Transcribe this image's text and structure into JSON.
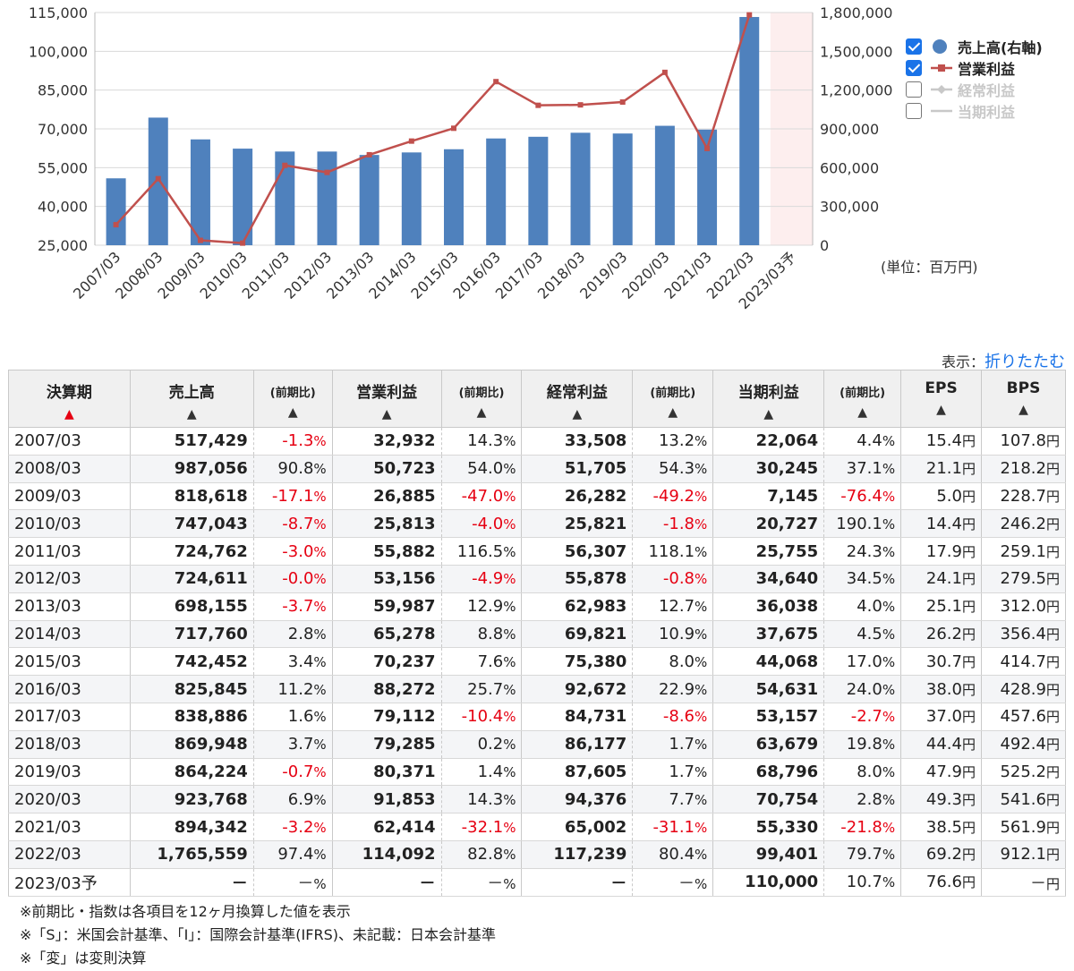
{
  "chart_data": {
    "type": "bar",
    "categories": [
      "2007/03",
      "2008/03",
      "2009/03",
      "2010/03",
      "2011/03",
      "2012/03",
      "2013/03",
      "2014/03",
      "2015/03",
      "2016/03",
      "2017/03",
      "2018/03",
      "2019/03",
      "2020/03",
      "2021/03",
      "2022/03",
      "2023/03予"
    ],
    "series": [
      {
        "name": "売上高(右軸)",
        "type": "bar",
        "axis": "right",
        "color": "#4f81bd",
        "values": [
          517429,
          987056,
          818618,
          747043,
          724762,
          724611,
          698155,
          717760,
          742452,
          825845,
          838886,
          869948,
          864224,
          923768,
          894342,
          1765559,
          null
        ]
      },
      {
        "name": "営業利益",
        "type": "line",
        "axis": "left",
        "color": "#c0504d",
        "values": [
          32932,
          50723,
          26885,
          25813,
          55882,
          53156,
          59987,
          65278,
          70237,
          88272,
          79112,
          79285,
          80371,
          91853,
          62414,
          114092,
          null
        ]
      }
    ],
    "left_axis": {
      "min": 25000,
      "max": 115000,
      "ticks": [
        "115,000",
        "100,000",
        "85,000",
        "70,000",
        "55,000",
        "40,000",
        "25,000"
      ]
    },
    "right_axis": {
      "min": 0,
      "max": 1800000,
      "ticks": [
        "1,800,000",
        "1,500,000",
        "1,200,000",
        "900,000",
        "600,000",
        "300,000",
        "0"
      ]
    },
    "forecast_band_color": "#fdeeee",
    "grid": true,
    "legend_position": "right"
  },
  "legend": [
    {
      "label": "売上高(右軸)",
      "checked": true,
      "symbol": "circle",
      "color": "#4f81bd"
    },
    {
      "label": "営業利益",
      "checked": true,
      "symbol": "line-square",
      "color": "#c0504d"
    },
    {
      "label": "経常利益",
      "checked": false,
      "symbol": "line-diamond",
      "color": "#c8c8c8"
    },
    {
      "label": "当期利益",
      "checked": false,
      "symbol": "line-triangle",
      "color": "#c8c8c8"
    }
  ],
  "unit_label": "(単位：百万円)",
  "display": {
    "prefix": "表示：",
    "toggle_label": "折りたたむ"
  },
  "table": {
    "headers": {
      "period": "決算期",
      "sales": "売上高",
      "change": "(前期比)",
      "op": "営業利益",
      "ordinary": "経常利益",
      "net": "当期利益",
      "eps": "EPS",
      "bps": "BPS"
    },
    "rows": [
      {
        "period": "2007/03",
        "sales": "517,429",
        "sales_chg": "-1.3",
        "op": "32,932",
        "op_chg": "14.3",
        "ord": "33,508",
        "ord_chg": "13.2",
        "net": "22,064",
        "net_chg": "4.4",
        "eps": "15.4",
        "bps": "107.8"
      },
      {
        "period": "2008/03",
        "sales": "987,056",
        "sales_chg": "90.8",
        "op": "50,723",
        "op_chg": "54.0",
        "ord": "51,705",
        "ord_chg": "54.3",
        "net": "30,245",
        "net_chg": "37.1",
        "eps": "21.1",
        "bps": "218.2"
      },
      {
        "period": "2009/03",
        "sales": "818,618",
        "sales_chg": "-17.1",
        "op": "26,885",
        "op_chg": "-47.0",
        "ord": "26,282",
        "ord_chg": "-49.2",
        "net": "7,145",
        "net_chg": "-76.4",
        "eps": "5.0",
        "bps": "228.7"
      },
      {
        "period": "2010/03",
        "sales": "747,043",
        "sales_chg": "-8.7",
        "op": "25,813",
        "op_chg": "-4.0",
        "ord": "25,821",
        "ord_chg": "-1.8",
        "net": "20,727",
        "net_chg": "190.1",
        "eps": "14.4",
        "bps": "246.2"
      },
      {
        "period": "2011/03",
        "sales": "724,762",
        "sales_chg": "-3.0",
        "op": "55,882",
        "op_chg": "116.5",
        "ord": "56,307",
        "ord_chg": "118.1",
        "net": "25,755",
        "net_chg": "24.3",
        "eps": "17.9",
        "bps": "259.1"
      },
      {
        "period": "2012/03",
        "sales": "724,611",
        "sales_chg": "-0.0",
        "op": "53,156",
        "op_chg": "-4.9",
        "ord": "55,878",
        "ord_chg": "-0.8",
        "net": "34,640",
        "net_chg": "34.5",
        "eps": "24.1",
        "bps": "279.5"
      },
      {
        "period": "2013/03",
        "sales": "698,155",
        "sales_chg": "-3.7",
        "op": "59,987",
        "op_chg": "12.9",
        "ord": "62,983",
        "ord_chg": "12.7",
        "net": "36,038",
        "net_chg": "4.0",
        "eps": "25.1",
        "bps": "312.0"
      },
      {
        "period": "2014/03",
        "sales": "717,760",
        "sales_chg": "2.8",
        "op": "65,278",
        "op_chg": "8.8",
        "ord": "69,821",
        "ord_chg": "10.9",
        "net": "37,675",
        "net_chg": "4.5",
        "eps": "26.2",
        "bps": "356.4"
      },
      {
        "period": "2015/03",
        "sales": "742,452",
        "sales_chg": "3.4",
        "op": "70,237",
        "op_chg": "7.6",
        "ord": "75,380",
        "ord_chg": "8.0",
        "net": "44,068",
        "net_chg": "17.0",
        "eps": "30.7",
        "bps": "414.7"
      },
      {
        "period": "2016/03",
        "sales": "825,845",
        "sales_chg": "11.2",
        "op": "88,272",
        "op_chg": "25.7",
        "ord": "92,672",
        "ord_chg": "22.9",
        "net": "54,631",
        "net_chg": "24.0",
        "eps": "38.0",
        "bps": "428.9"
      },
      {
        "period": "2017/03",
        "sales": "838,886",
        "sales_chg": "1.6",
        "op": "79,112",
        "op_chg": "-10.4",
        "ord": "84,731",
        "ord_chg": "-8.6",
        "net": "53,157",
        "net_chg": "-2.7",
        "eps": "37.0",
        "bps": "457.6"
      },
      {
        "period": "2018/03",
        "sales": "869,948",
        "sales_chg": "3.7",
        "op": "79,285",
        "op_chg": "0.2",
        "ord": "86,177",
        "ord_chg": "1.7",
        "net": "63,679",
        "net_chg": "19.8",
        "eps": "44.4",
        "bps": "492.4"
      },
      {
        "period": "2019/03",
        "sales": "864,224",
        "sales_chg": "-0.7",
        "op": "80,371",
        "op_chg": "1.4",
        "ord": "87,605",
        "ord_chg": "1.7",
        "net": "68,796",
        "net_chg": "8.0",
        "eps": "47.9",
        "bps": "525.2"
      },
      {
        "period": "2020/03",
        "sales": "923,768",
        "sales_chg": "6.9",
        "op": "91,853",
        "op_chg": "14.3",
        "ord": "94,376",
        "ord_chg": "7.7",
        "net": "70,754",
        "net_chg": "2.8",
        "eps": "49.3",
        "bps": "541.6"
      },
      {
        "period": "2021/03",
        "sales": "894,342",
        "sales_chg": "-3.2",
        "op": "62,414",
        "op_chg": "-32.1",
        "ord": "65,002",
        "ord_chg": "-31.1",
        "net": "55,330",
        "net_chg": "-21.8",
        "eps": "38.5",
        "bps": "561.9"
      },
      {
        "period": "2022/03",
        "sales": "1,765,559",
        "sales_chg": "97.4",
        "op": "114,092",
        "op_chg": "82.8",
        "ord": "117,239",
        "ord_chg": "80.4",
        "net": "99,401",
        "net_chg": "79.7",
        "eps": "69.2",
        "bps": "912.1"
      },
      {
        "period": "2023/03予",
        "sales": "－",
        "sales_chg": "－",
        "op": "－",
        "op_chg": "－",
        "ord": "－",
        "ord_chg": "－",
        "net": "110,000",
        "net_chg": "10.7",
        "eps": "76.6",
        "bps": "－"
      }
    ],
    "pct_suffix": "%",
    "yen_suffix": "円"
  },
  "notes": [
    "※前期比・指数は各項目を12ヶ月換算した値を表示",
    "※「S」：米国会計基準、「I」：国際会計基準(IFRS)、未記載：日本会計基準",
    "※「変」は変則決算"
  ]
}
